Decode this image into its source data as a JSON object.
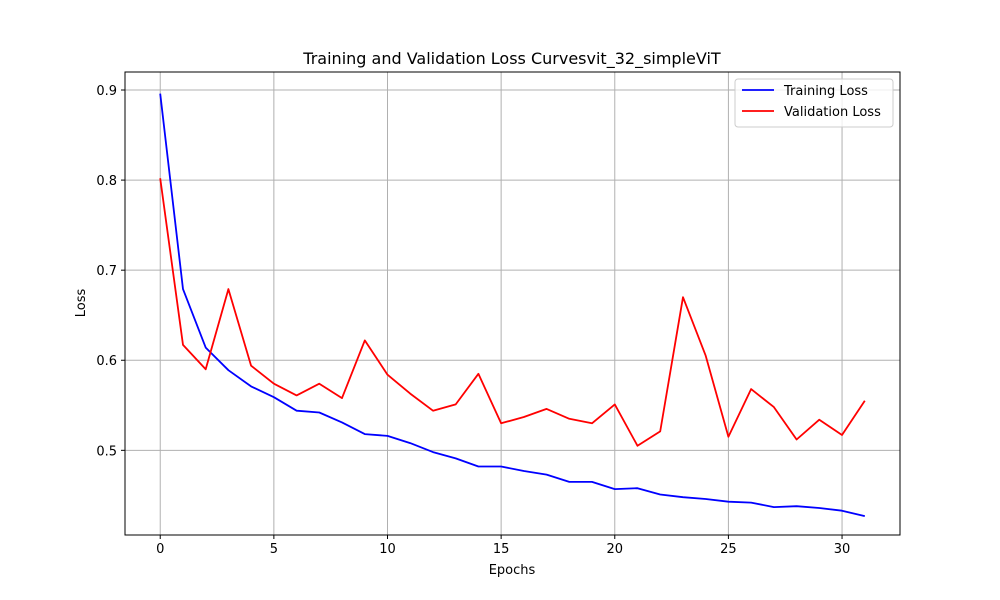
{
  "chart_data": {
    "type": "line",
    "title": "Training and Validation Loss Curvesvit_32_simpleViT",
    "xlabel": "Epochs",
    "ylabel": "Loss",
    "xlim": [
      -1.55,
      32.55
    ],
    "ylim": [
      0.406,
      0.92
    ],
    "xticks": [
      0,
      5,
      10,
      15,
      20,
      25,
      30
    ],
    "yticks": [
      0.5,
      0.6,
      0.7,
      0.8,
      0.9
    ],
    "grid": true,
    "legend_position": "top-right",
    "x": [
      0,
      1,
      2,
      3,
      4,
      5,
      6,
      7,
      8,
      9,
      10,
      11,
      12,
      13,
      14,
      15,
      16,
      17,
      18,
      19,
      20,
      21,
      22,
      23,
      24,
      25,
      26,
      27,
      28,
      29,
      30,
      31
    ],
    "series": [
      {
        "name": "Training Loss",
        "color": "#0000ff",
        "values": [
          0.896,
          0.679,
          0.614,
          0.589,
          0.571,
          0.559,
          0.544,
          0.542,
          0.531,
          0.518,
          0.516,
          0.508,
          0.498,
          0.491,
          0.482,
          0.482,
          0.477,
          0.473,
          0.465,
          0.465,
          0.457,
          0.458,
          0.451,
          0.448,
          0.446,
          0.443,
          0.442,
          0.437,
          0.438,
          0.436,
          0.433,
          0.427
        ]
      },
      {
        "name": "Validation Loss",
        "color": "#ff0000",
        "values": [
          0.802,
          0.617,
          0.59,
          0.679,
          0.594,
          0.574,
          0.561,
          0.574,
          0.558,
          0.622,
          0.584,
          0.563,
          0.544,
          0.551,
          0.585,
          0.53,
          0.537,
          0.546,
          0.535,
          0.53,
          0.551,
          0.505,
          0.521,
          0.67,
          0.605,
          0.515,
          0.568,
          0.548,
          0.512,
          0.534,
          0.517,
          0.555
        ]
      }
    ]
  }
}
